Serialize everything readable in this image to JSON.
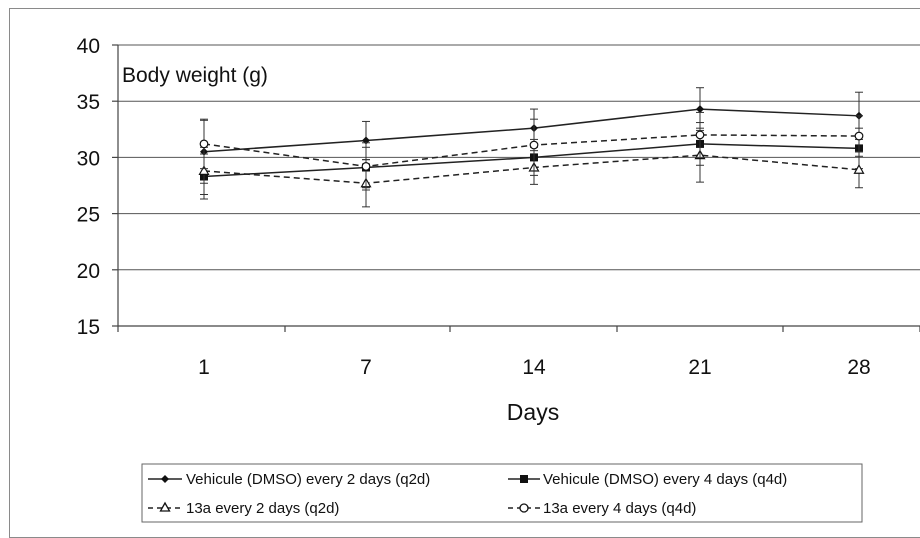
{
  "chart_data": {
    "type": "line",
    "title": "Body weight (g)",
    "xlabel": "Days",
    "ylabel": "",
    "categories": [
      "1",
      "7",
      "14",
      "21",
      "28"
    ],
    "ylim": [
      15,
      40
    ],
    "yticks": [
      15,
      20,
      25,
      30,
      35,
      40
    ],
    "grid": true,
    "legend_position": "bottom",
    "series": [
      {
        "name": "Vehicule (DMSO) every 2 days (q2d)",
        "values": [
          30.5,
          31.5,
          32.6,
          34.3,
          33.7
        ],
        "errors": [
          2.8,
          1.7,
          1.7,
          1.9,
          2.1
        ],
        "line_style": "solid",
        "marker": "diamond-filled",
        "color": "#222222"
      },
      {
        "name": "Vehicule (DMSO) every 4 days (q4d)",
        "values": [
          28.3,
          29.1,
          30.0,
          31.2,
          30.8
        ],
        "errors": [
          2.0,
          1.8,
          1.6,
          1.9,
          1.8
        ],
        "line_style": "solid",
        "marker": "square-filled",
        "color": "#222222"
      },
      {
        "name": "13a every 2 days (q2d)",
        "values": [
          28.8,
          27.7,
          29.1,
          30.2,
          28.9
        ],
        "errors": [
          2.1,
          2.1,
          1.5,
          2.4,
          1.6
        ],
        "line_style": "dashed",
        "marker": "triangle-open",
        "color": "#222222"
      },
      {
        "name": "13a every 4 days (q4d)",
        "values": [
          31.2,
          29.2,
          31.1,
          32.0,
          31.9
        ],
        "errors": [
          2.2,
          2.1,
          2.3,
          2.0,
          1.8
        ],
        "line_style": "dashed",
        "marker": "circle-open",
        "color": "#222222"
      }
    ]
  }
}
